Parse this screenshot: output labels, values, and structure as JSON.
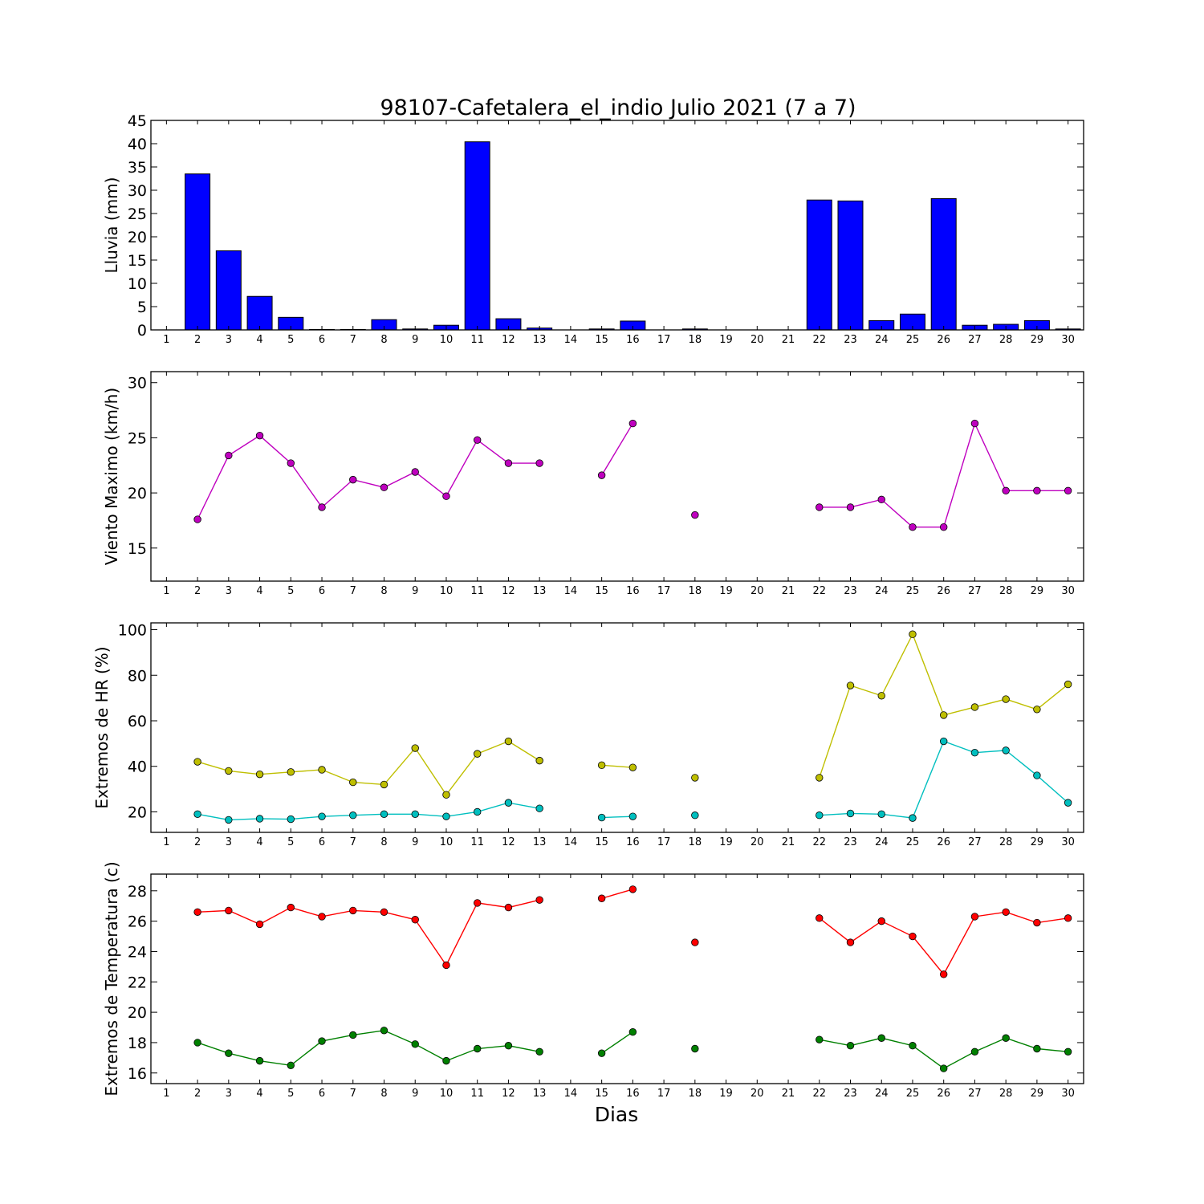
{
  "chart_data": {
    "title": "98107-Cafetalera_el_indio Julio 2021  (7 a 7)",
    "xlabel": "Dias",
    "days": [
      1,
      2,
      3,
      4,
      5,
      6,
      7,
      8,
      9,
      10,
      11,
      12,
      13,
      14,
      15,
      16,
      17,
      18,
      19,
      20,
      21,
      22,
      23,
      24,
      25,
      26,
      27,
      28,
      29,
      30
    ],
    "panels": [
      {
        "type": "bar",
        "ylabel": "Lluvia (mm)",
        "ylim": [
          0,
          45
        ],
        "yticks": [
          0,
          5,
          10,
          15,
          20,
          25,
          30,
          35,
          40,
          45
        ],
        "grid": false,
        "series": [
          {
            "color": "#0000ff",
            "values": [
              0,
              33.5,
              17,
              7.2,
              2.7,
              0.1,
              0.1,
              2.2,
              0.2,
              1,
              40.4,
              2.4,
              0.4,
              0,
              0.2,
              1.9,
              0,
              0.2,
              0,
              0,
              0,
              27.9,
              27.7,
              2,
              3.4,
              28.2,
              1,
              1.2,
              2,
              0.2
            ]
          }
        ]
      },
      {
        "type": "line",
        "ylabel": "Viento Maximo (km/h)",
        "ylim": [
          12,
          31
        ],
        "yticks": [
          15,
          20,
          25,
          30
        ],
        "grid": false,
        "series": [
          {
            "color": "#bf00bf",
            "values": [
              null,
              17.6,
              23.4,
              25.2,
              22.7,
              18.7,
              21.2,
              20.5,
              21.9,
              19.7,
              24.8,
              22.7,
              22.7,
              null,
              21.6,
              26.3,
              null,
              18,
              null,
              null,
              null,
              18.7,
              18.7,
              19.4,
              16.9,
              16.9,
              26.3,
              20.2,
              20.2,
              20.2
            ]
          }
        ]
      },
      {
        "type": "line",
        "ylabel": "Extremos de HR (%)",
        "ylim": [
          11,
          103
        ],
        "yticks": [
          20,
          40,
          60,
          80,
          100
        ],
        "grid": false,
        "series": [
          {
            "color": "#bfbf00",
            "values": [
              null,
              42,
              38,
              36.5,
              37.5,
              38.5,
              33,
              32,
              48,
              27.5,
              45.5,
              51,
              42.5,
              null,
              40.5,
              39.5,
              null,
              35,
              null,
              null,
              null,
              35,
              75.5,
              71,
              98,
              62.5,
              66,
              69.5,
              65,
              76
            ]
          },
          {
            "color": "#00bfbf",
            "values": [
              null,
              19,
              16.5,
              17,
              16.8,
              18,
              18.5,
              19,
              19,
              18,
              20,
              24,
              21.5,
              null,
              17.5,
              18,
              null,
              18.5,
              null,
              null,
              null,
              18.5,
              19.3,
              19,
              17.3,
              51,
              46,
              47,
              36,
              24
            ]
          }
        ]
      },
      {
        "type": "line",
        "ylabel": "Extremos de Temperatura (c)",
        "ylim": [
          15.3,
          29.1
        ],
        "yticks": [
          16,
          18,
          20,
          22,
          24,
          26,
          28
        ],
        "grid": false,
        "series": [
          {
            "color": "#ff0000",
            "values": [
              null,
              26.6,
              26.7,
              25.8,
              26.9,
              26.3,
              26.7,
              26.6,
              26.1,
              23.1,
              27.2,
              26.9,
              27.4,
              null,
              27.5,
              28.1,
              null,
              24.6,
              null,
              null,
              null,
              26.2,
              24.6,
              26,
              25,
              22.5,
              26.3,
              26.6,
              25.9,
              26.2
            ]
          },
          {
            "color": "#008000",
            "values": [
              null,
              18,
              17.3,
              16.8,
              16.5,
              18.1,
              18.5,
              18.8,
              17.9,
              16.8,
              17.6,
              17.8,
              17.4,
              null,
              17.3,
              18.7,
              null,
              17.6,
              null,
              null,
              null,
              18.2,
              17.8,
              18.3,
              17.8,
              16.3,
              17.4,
              18.3,
              17.6,
              17.4
            ]
          }
        ]
      }
    ]
  }
}
